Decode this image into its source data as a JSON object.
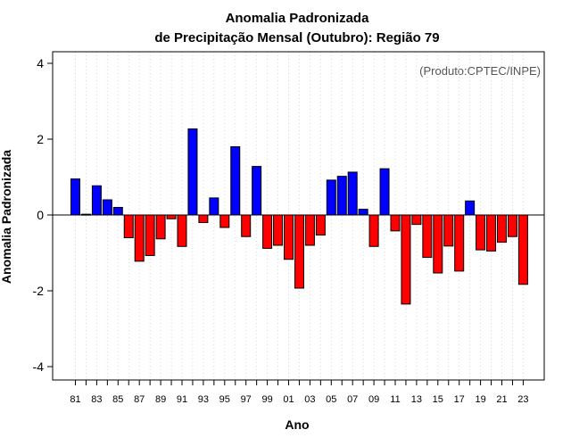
{
  "chart_data": {
    "type": "bar",
    "title": "Anomalia Padronizada",
    "subtitle": "de Precipitação Mensal (Outubro): Região 79",
    "xlabel": "Ano",
    "ylabel": "Anomalia Padronizada",
    "credit": "(Produto:CPTEC/INPE)",
    "ylim": [
      -4.3,
      4.3
    ],
    "yticks": [
      "-4",
      "-2",
      "0",
      "2",
      "4"
    ],
    "ytick_values": [
      -4,
      -2,
      0,
      2,
      4
    ],
    "grid": "vertical dotted",
    "colors": {
      "positive": "#0000ff",
      "negative": "#ff0000",
      "grid": "#d3d3d3"
    },
    "categories": [
      "81",
      "82",
      "83",
      "84",
      "85",
      "86",
      "87",
      "88",
      "89",
      "90",
      "91",
      "92",
      "93",
      "94",
      "95",
      "96",
      "97",
      "98",
      "99",
      "00",
      "01",
      "02",
      "03",
      "04",
      "05",
      "06",
      "07",
      "08",
      "09",
      "10",
      "11",
      "12",
      "13",
      "14",
      "15",
      "16",
      "17",
      "18",
      "19",
      "20",
      "21",
      "22",
      "23"
    ],
    "tick_labels": [
      "81",
      "83",
      "85",
      "87",
      "89",
      "91",
      "93",
      "95",
      "97",
      "99",
      "01",
      "03",
      "05",
      "07",
      "09",
      "11",
      "13",
      "15",
      "17",
      "19",
      "21",
      "23"
    ],
    "values": [
      0.95,
      0.02,
      0.77,
      0.4,
      0.2,
      -0.6,
      -1.22,
      -1.07,
      -0.63,
      -0.1,
      -0.83,
      2.27,
      -0.2,
      0.45,
      -0.33,
      1.8,
      -0.57,
      1.28,
      -0.88,
      -0.8,
      -1.17,
      -1.93,
      -0.8,
      -0.53,
      0.92,
      1.02,
      1.13,
      0.15,
      -0.83,
      1.22,
      -0.42,
      -2.35,
      -0.25,
      -1.12,
      -1.53,
      -0.82,
      -1.48,
      0.37,
      -0.92,
      -0.95,
      -0.72,
      -0.57,
      -1.83
    ]
  }
}
